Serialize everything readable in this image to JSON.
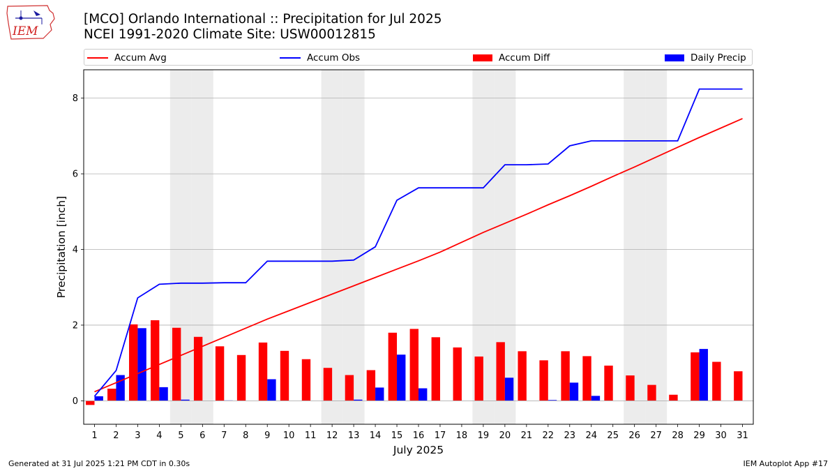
{
  "title": {
    "line1": "[MCO] Orlando International :: Precipitation for Jul 2025",
    "line2": "NCEI 1991-2020 Climate Site: USW00012815"
  },
  "logo": {
    "text": "IEM",
    "icon": "iem-iowa-map-logo"
  },
  "legend": {
    "items": [
      {
        "label": "Accum Avg",
        "kind": "line",
        "color": "#ff0000"
      },
      {
        "label": "Accum Obs",
        "kind": "line",
        "color": "#0000ff"
      },
      {
        "label": "Accum Diff",
        "kind": "bar",
        "color": "#ff0000"
      },
      {
        "label": "Daily Precip",
        "kind": "bar",
        "color": "#0000ff"
      }
    ]
  },
  "footer": {
    "left": "Generated at 31 Jul 2025 1:21 PM CDT in 0.30s",
    "right": "IEM Autoplot App #17"
  },
  "chart_data": {
    "type": "bar",
    "xlabel": "July 2025",
    "ylabel": "Precipitation [inch]",
    "ylim": [
      -0.62,
      8.75
    ],
    "yticks": [
      0,
      2,
      4,
      6,
      8
    ],
    "grid": "horizontal",
    "legend_position": "top",
    "weekend_shading_days": [
      5,
      6,
      12,
      13,
      19,
      20,
      26,
      27
    ],
    "x": [
      1,
      2,
      3,
      4,
      5,
      6,
      7,
      8,
      9,
      10,
      11,
      12,
      13,
      14,
      15,
      16,
      17,
      18,
      19,
      20,
      21,
      22,
      23,
      24,
      25,
      26,
      27,
      28,
      29,
      30,
      31
    ],
    "series": [
      {
        "name": "Accum Avg",
        "kind": "line",
        "color": "#ff0000",
        "values": [
          0.24,
          0.48,
          0.72,
          0.96,
          1.2,
          1.44,
          1.68,
          1.92,
          2.16,
          2.38,
          2.6,
          2.82,
          3.04,
          3.26,
          3.48,
          3.7,
          3.93,
          4.19,
          4.45,
          4.69,
          4.93,
          5.18,
          5.42,
          5.67,
          5.93,
          6.18,
          6.44,
          6.7,
          6.96,
          7.21,
          7.46
        ]
      },
      {
        "name": "Accum Obs",
        "kind": "line",
        "color": "#0000ff",
        "values": [
          0.12,
          0.8,
          2.72,
          3.08,
          3.11,
          3.11,
          3.12,
          3.12,
          3.69,
          3.69,
          3.69,
          3.69,
          3.72,
          4.07,
          5.3,
          5.63,
          5.63,
          5.63,
          5.63,
          6.24,
          6.24,
          6.26,
          6.74,
          6.87,
          6.87,
          6.87,
          6.87,
          6.87,
          8.24,
          8.24,
          8.24
        ]
      },
      {
        "name": "Accum Diff",
        "kind": "bar",
        "color": "#ff0000",
        "values": [
          -0.11,
          0.32,
          2.02,
          2.13,
          1.93,
          1.69,
          1.44,
          1.21,
          1.54,
          1.32,
          1.1,
          0.87,
          0.68,
          0.81,
          1.8,
          1.9,
          1.68,
          1.41,
          1.17,
          1.55,
          1.31,
          1.07,
          1.31,
          1.18,
          0.93,
          0.67,
          0.42,
          0.16,
          1.28,
          1.03,
          0.78
        ]
      },
      {
        "name": "Daily Precip",
        "kind": "bar",
        "color": "#0000ff",
        "values": [
          0.12,
          0.68,
          1.92,
          0.36,
          0.03,
          0,
          0.01,
          0,
          0.57,
          0,
          0,
          0,
          0.03,
          0.35,
          1.22,
          0.33,
          0,
          0,
          0,
          0.61,
          0,
          0.02,
          0.48,
          0.13,
          0,
          0,
          0,
          0,
          1.37,
          0,
          0
        ]
      }
    ]
  }
}
